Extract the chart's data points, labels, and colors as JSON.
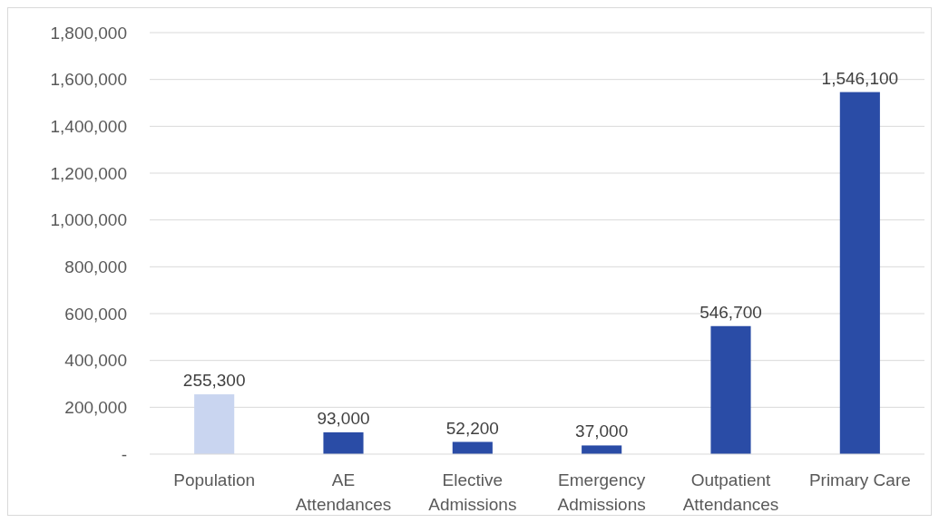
{
  "chart_data": {
    "type": "bar",
    "categories": [
      "Population",
      "AE Attendances",
      "Elective Admissions",
      "Emergency Admissions",
      "Outpatient Attendances",
      "Primary Care"
    ],
    "values": [
      255300,
      93000,
      52200,
      37000,
      546700,
      1546100
    ],
    "colors": [
      "#c9d5f0",
      "#2a4ca6",
      "#2a4ca6",
      "#2a4ca6",
      "#2a4ca6",
      "#2a4ca6"
    ],
    "value_labels": [
      "255,300",
      "93,000",
      "52,200",
      "37,000",
      "546,700",
      "1,546,100"
    ],
    "ylim": [
      0,
      1800000
    ],
    "yticks": [
      {
        "value": 0,
        "label": "-"
      },
      {
        "value": 200000,
        "label": "200,000"
      },
      {
        "value": 400000,
        "label": "400,000"
      },
      {
        "value": 600000,
        "label": "600,000"
      },
      {
        "value": 800000,
        "label": "800,000"
      },
      {
        "value": 1000000,
        "label": "1,000,000"
      },
      {
        "value": 1200000,
        "label": "1,200,000"
      },
      {
        "value": 1400000,
        "label": "1,400,000"
      },
      {
        "value": 1600000,
        "label": "1,600,000"
      },
      {
        "value": 1800000,
        "label": "1,800,000"
      }
    ],
    "grid": "y"
  }
}
